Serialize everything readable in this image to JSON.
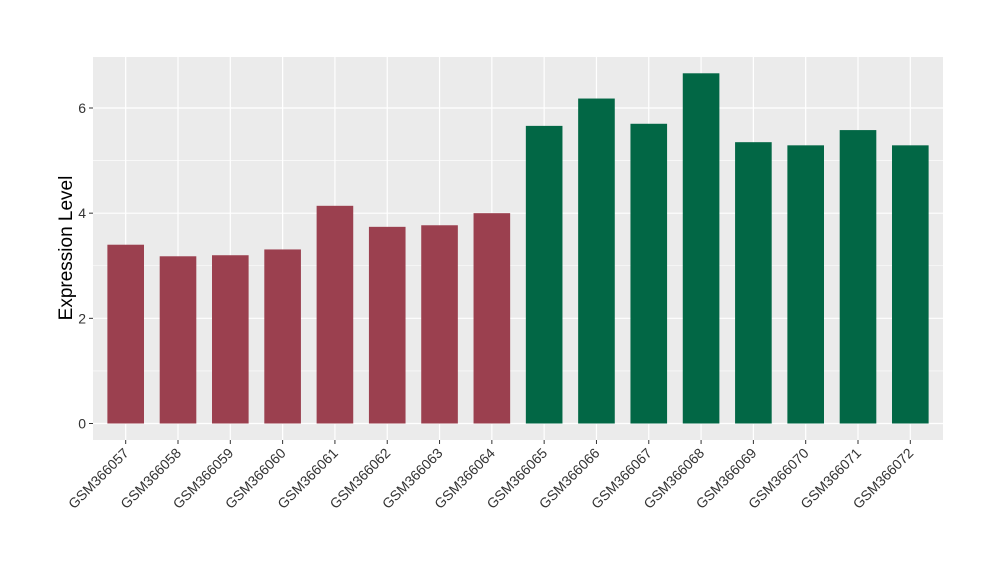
{
  "chart_data": {
    "type": "bar",
    "title": "",
    "xlabel": "",
    "ylabel": "Expression Level",
    "ylim": [
      0,
      7
    ],
    "yticks": [
      0,
      2,
      4,
      6
    ],
    "grid": true,
    "legend": "none",
    "categories": [
      "GSM366057",
      "GSM366058",
      "GSM366059",
      "GSM366060",
      "GSM366061",
      "GSM366062",
      "GSM366063",
      "GSM366064",
      "GSM366065",
      "GSM366066",
      "GSM366067",
      "GSM366068",
      "GSM366069",
      "GSM366070",
      "GSM366071",
      "GSM366072"
    ],
    "values": [
      3.4,
      3.18,
      3.2,
      3.31,
      4.14,
      3.74,
      3.77,
      4.0,
      5.66,
      6.18,
      5.7,
      6.66,
      5.35,
      5.29,
      5.58,
      5.29
    ],
    "group": [
      0,
      0,
      0,
      0,
      0,
      0,
      0,
      0,
      1,
      1,
      1,
      1,
      1,
      1,
      1,
      1
    ],
    "group_colors": [
      "#9b404f",
      "#026745"
    ],
    "panel_background": "#ebebeb",
    "grid_color": "#ffffff"
  }
}
